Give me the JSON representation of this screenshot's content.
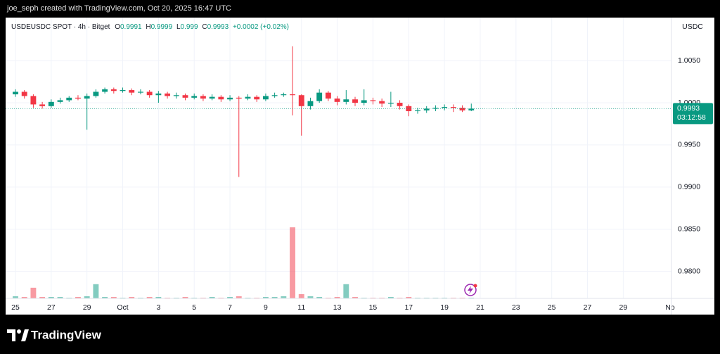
{
  "header": "joe_seph created with TradingView.com, Oct 20, 2025 16:47 UTC",
  "footer_brand": "TradingView",
  "chart_data": {
    "type": "candlestick",
    "symbol": "USDEUSDC SPOT · 4h · Bitget",
    "legend": {
      "open_label": "O",
      "high_label": "H",
      "low_label": "L",
      "close_label": "C",
      "change": "+0.0002 (+0.02%)"
    },
    "currency": "USDC",
    "countdown": "03:12:58",
    "up_color": "#089981",
    "down_color": "#f23645",
    "grid": true,
    "ylim": [
      0.9768,
      1.0101
    ],
    "yticks": [
      {
        "value": 1.005,
        "label": "1.0050"
      },
      {
        "value": 1.0,
        "label": "1.0000"
      },
      {
        "value": 0.995,
        "label": "0.9950"
      },
      {
        "value": 0.99,
        "label": "0.9900"
      },
      {
        "value": 0.985,
        "label": "0.9850"
      },
      {
        "value": 0.98,
        "label": "0.9800"
      }
    ],
    "xlim": [
      -0.55,
      36.7
    ],
    "xticks": [
      {
        "value": 0,
        "label": "25"
      },
      {
        "value": 2,
        "label": "27"
      },
      {
        "value": 4,
        "label": "29"
      },
      {
        "value": 6,
        "label": "Oct"
      },
      {
        "value": 8,
        "label": "3"
      },
      {
        "value": 10,
        "label": "5"
      },
      {
        "value": 12,
        "label": "7"
      },
      {
        "value": 14,
        "label": "9"
      },
      {
        "value": 16,
        "label": "11"
      },
      {
        "value": 18,
        "label": "13"
      },
      {
        "value": 20,
        "label": "15"
      },
      {
        "value": 22,
        "label": "17"
      },
      {
        "value": 24,
        "label": "19"
      },
      {
        "value": 26,
        "label": "21"
      },
      {
        "value": 28,
        "label": "23"
      },
      {
        "value": 30,
        "label": "25"
      },
      {
        "value": 32,
        "label": "27"
      },
      {
        "value": 34,
        "label": "29"
      },
      {
        "value": 37,
        "label": "No"
      }
    ],
    "x": [
      0,
      0.5,
      1,
      1.5,
      2,
      2.5,
      3,
      3.5,
      4,
      4.5,
      5,
      5.5,
      6,
      6.5,
      7,
      7.5,
      8,
      8.5,
      9,
      9.5,
      10,
      10.5,
      11,
      11.5,
      12,
      12.5,
      13,
      13.5,
      14,
      14.5,
      15,
      15.5,
      16,
      16.5,
      17,
      17.5,
      18,
      18.5,
      19,
      19.5,
      20,
      20.5,
      21,
      21.5,
      22,
      22.5,
      23,
      23.5,
      24,
      24.5,
      25,
      25.5
    ],
    "open": [
      1.001,
      1.0013,
      1.0008,
      0.9998,
      0.9996,
      1.0001,
      1.0003,
      1.0006,
      1.0005,
      1.0008,
      1.0013,
      1.0016,
      1.0014,
      1.0015,
      1.0012,
      1.0013,
      1.0009,
      1.0011,
      1.0008,
      1.0009,
      1.0006,
      1.0008,
      1.0005,
      1.0007,
      1.0004,
      1.0006,
      1.0005,
      1.0007,
      1.0004,
      1.0008,
      1.0009,
      1.001,
      1.0009,
      0.9996,
      1.0002,
      1.0012,
      1.0005,
      1.0001,
      1.0004,
      1.0,
      1.0003,
      1.0002,
      0.9999,
      1.0,
      0.9996,
      0.999,
      0.9991,
      0.9993,
      0.9994,
      0.9995,
      0.9994,
      0.9991
    ],
    "high": [
      1.0016,
      1.0015,
      1.001,
      1.0001,
      1.0004,
      1.0006,
      1.0008,
      1.0009,
      1.0011,
      1.0016,
      1.0018,
      1.0018,
      1.0018,
      1.0017,
      1.0016,
      1.0015,
      1.0014,
      1.0013,
      1.0012,
      1.0011,
      1.0011,
      1.001,
      1.001,
      1.0009,
      1.0009,
      1.0008,
      1.001,
      1.0009,
      1.0011,
      1.0012,
      1.0012,
      1.0067,
      1.001,
      1.0006,
      1.0016,
      1.0014,
      1.0008,
      1.0015,
      1.0007,
      1.0016,
      1.0006,
      1.0005,
      1.0013,
      1.0003,
      0.9998,
      0.9994,
      0.9996,
      0.9997,
      0.9998,
      0.9998,
      0.9997,
      0.9999
    ],
    "low": [
      1.0007,
      1.0005,
      0.9994,
      0.9993,
      0.9994,
      0.9999,
      1.0001,
      1.0003,
      0.9968,
      1.0006,
      1.0011,
      1.0011,
      1.0012,
      1.0009,
      1.001,
      1.0006,
      1.0,
      1.0005,
      1.0005,
      1.0003,
      1.0004,
      1.0002,
      1.0003,
      1.0001,
      1.0002,
      0.9912,
      1.0003,
      1.0001,
      1.0002,
      1.0006,
      1.0007,
      0.9985,
      0.9961,
      0.9992,
      1.0,
      1.0002,
      0.9997,
      0.9998,
      0.9996,
      0.9997,
      0.9998,
      0.9995,
      0.9995,
      0.9992,
      0.9984,
      0.9987,
      0.9988,
      0.999,
      0.9991,
      0.9989,
      0.9989,
      0.999
    ],
    "close": [
      1.0013,
      1.0008,
      0.9998,
      0.9996,
      1.0001,
      1.0003,
      1.0006,
      1.0005,
      1.0008,
      1.0013,
      1.0016,
      1.0014,
      1.0015,
      1.0012,
      1.0013,
      1.0009,
      1.0011,
      1.0008,
      1.0009,
      1.0006,
      1.0008,
      1.0005,
      1.0007,
      1.0004,
      1.0006,
      1.0005,
      1.0007,
      1.0004,
      1.0008,
      1.0009,
      1.001,
      1.0009,
      0.9996,
      1.0002,
      1.0012,
      1.0005,
      1.0001,
      1.0004,
      1.0,
      1.0003,
      1.0002,
      0.9999,
      1.0,
      0.9996,
      0.999,
      0.9991,
      0.9993,
      0.9994,
      0.9995,
      0.9994,
      0.9991,
      0.9993
    ],
    "volume": [
      3,
      2,
      15,
      2,
      2,
      2,
      1,
      2,
      3,
      20,
      2,
      2,
      1,
      2,
      1,
      2,
      2,
      1,
      1,
      2,
      1,
      1,
      2,
      1,
      2,
      3,
      1,
      1,
      2,
      2,
      3,
      100,
      6,
      3,
      2,
      1,
      2,
      20,
      2,
      1,
      1,
      1,
      2,
      1,
      2,
      1,
      1,
      1,
      1,
      1,
      1,
      1
    ]
  }
}
